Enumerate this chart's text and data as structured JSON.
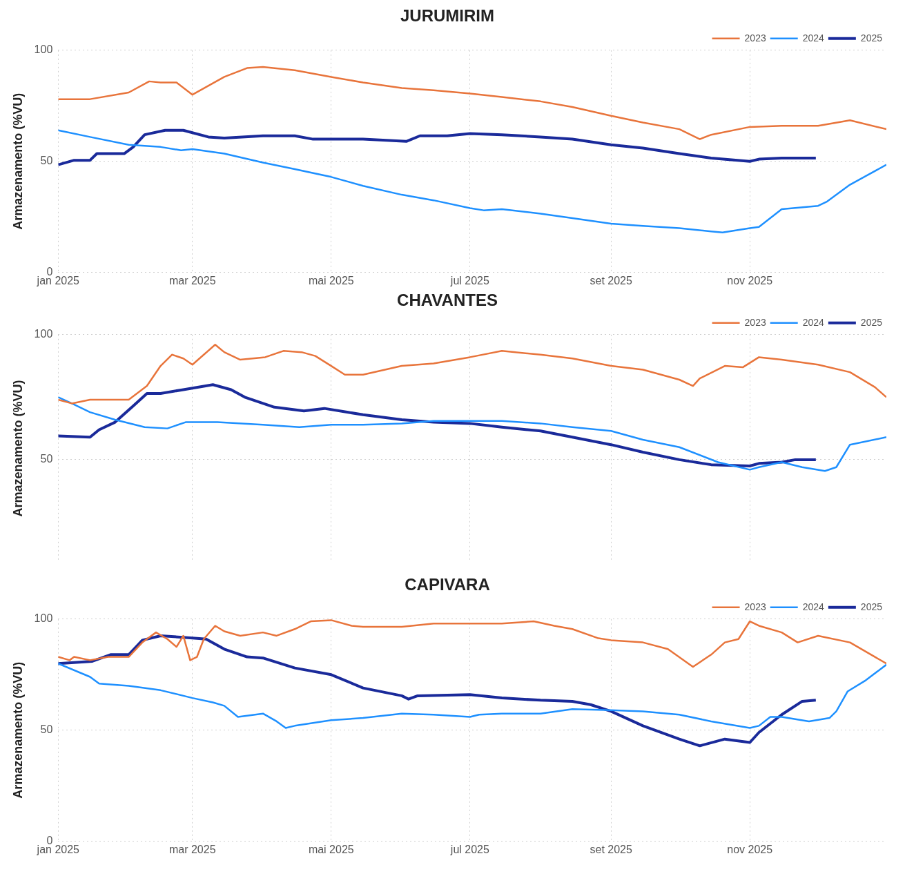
{
  "chart_data": [
    {
      "type": "line",
      "title": "JURUMIRIM",
      "ylabel": "Armazenamento (%VU)",
      "xlim": [
        "2025-01-01",
        "2025-12-31"
      ],
      "ylim": [
        0,
        100
      ],
      "yticks": [
        0,
        50,
        100
      ],
      "xticks": [
        {
          "value": "2025-01-01",
          "label": "jan 2025"
        },
        {
          "value": "2025-03-01",
          "label": "mar 2025"
        },
        {
          "value": "2025-05-01",
          "label": "mai 2025"
        },
        {
          "value": "2025-07-01",
          "label": "jul 2025"
        },
        {
          "value": "2025-09-01",
          "label": "set 2025"
        },
        {
          "value": "2025-11-01",
          "label": "nov 2025"
        }
      ],
      "grid": true,
      "legend": "top right",
      "marker": "none",
      "series": [
        {
          "name": "2023",
          "color": "#e8743b",
          "x": [
            "2025-01-01",
            "2025-01-15",
            "2025-02-01",
            "2025-02-10",
            "2025-02-15",
            "2025-02-22",
            "2025-03-01",
            "2025-03-15",
            "2025-03-25",
            "2025-04-01",
            "2025-04-15",
            "2025-05-01",
            "2025-05-15",
            "2025-06-01",
            "2025-06-15",
            "2025-07-01",
            "2025-07-15",
            "2025-08-01",
            "2025-08-15",
            "2025-09-01",
            "2025-09-15",
            "2025-10-01",
            "2025-10-10",
            "2025-10-15",
            "2025-11-01",
            "2025-11-15",
            "2025-12-01",
            "2025-12-15",
            "2025-12-31"
          ],
          "values": [
            78,
            78,
            81,
            86,
            85.5,
            85.5,
            80,
            88,
            92,
            92.5,
            91,
            88,
            85.5,
            83,
            82,
            80.5,
            79,
            77,
            74.5,
            70.5,
            67.5,
            64.5,
            60,
            62,
            65.5,
            66,
            66,
            68.5,
            64.5
          ]
        },
        {
          "name": "2024",
          "color": "#1e90ff",
          "x": [
            "2025-01-01",
            "2025-01-15",
            "2025-02-01",
            "2025-02-15",
            "2025-02-24",
            "2025-03-01",
            "2025-03-15",
            "2025-04-01",
            "2025-04-15",
            "2025-05-01",
            "2025-05-15",
            "2025-06-01",
            "2025-06-15",
            "2025-07-01",
            "2025-07-07",
            "2025-07-15",
            "2025-08-01",
            "2025-08-15",
            "2025-09-01",
            "2025-09-15",
            "2025-10-01",
            "2025-10-15",
            "2025-10-20",
            "2025-11-01",
            "2025-11-05",
            "2025-11-15",
            "2025-12-01",
            "2025-12-05",
            "2025-12-15",
            "2025-12-31"
          ],
          "values": [
            64,
            61,
            57.5,
            56.5,
            55,
            55.5,
            53.5,
            49.5,
            46.5,
            43,
            39,
            35,
            32.5,
            29,
            28,
            28.5,
            26.5,
            24.5,
            22,
            21,
            20,
            18.5,
            18,
            20,
            20.5,
            28.5,
            30,
            32,
            39.5,
            48.5
          ]
        },
        {
          "name": "2025",
          "color": "#1a2a9a",
          "x": [
            "2025-01-01",
            "2025-01-08",
            "2025-01-15",
            "2025-01-18",
            "2025-01-30",
            "2025-02-03",
            "2025-02-08",
            "2025-02-17",
            "2025-02-25",
            "2025-03-08",
            "2025-03-15",
            "2025-04-01",
            "2025-04-15",
            "2025-04-23",
            "2025-05-15",
            "2025-06-03",
            "2025-06-09",
            "2025-06-21",
            "2025-07-01",
            "2025-07-15",
            "2025-08-01",
            "2025-08-15",
            "2025-09-01",
            "2025-09-15",
            "2025-10-01",
            "2025-10-15",
            "2025-11-01",
            "2025-11-05",
            "2025-11-15",
            "2025-11-30"
          ],
          "values": [
            48.5,
            50.5,
            50.5,
            53.5,
            53.5,
            56.5,
            62,
            64,
            64,
            61,
            60.5,
            61.5,
            61.5,
            60,
            60,
            59,
            61.5,
            61.5,
            62.5,
            62,
            61,
            60,
            57.5,
            56,
            53.5,
            51.5,
            50,
            51,
            51.5,
            51.5
          ]
        }
      ]
    },
    {
      "type": "line",
      "title": "CHAVANTES",
      "ylabel": "Armazenamento (%VU)",
      "xlim": [
        "2025-01-01",
        "2025-12-31"
      ],
      "ylim": [
        9,
        100
      ],
      "yticks": [
        50,
        100
      ],
      "xticks": [
        {
          "value": "2025-01-01",
          "label": null
        },
        {
          "value": "2025-03-01",
          "label": null
        },
        {
          "value": "2025-05-01",
          "label": null
        },
        {
          "value": "2025-07-01",
          "label": null
        },
        {
          "value": "2025-09-01",
          "label": null
        },
        {
          "value": "2025-11-01",
          "label": null
        }
      ],
      "tick_labels": "y",
      "grid": true,
      "legend": "top right",
      "marker": "none",
      "series": [
        {
          "name": "2023",
          "color": "#e8743b",
          "x": [
            "2025-01-01",
            "2025-01-07",
            "2025-01-15",
            "2025-02-01",
            "2025-02-09",
            "2025-02-15",
            "2025-02-20",
            "2025-02-25",
            "2025-03-01",
            "2025-03-06",
            "2025-03-11",
            "2025-03-15",
            "2025-03-22",
            "2025-04-02",
            "2025-04-10",
            "2025-04-18",
            "2025-04-24",
            "2025-05-01",
            "2025-05-07",
            "2025-05-15",
            "2025-06-01",
            "2025-06-15",
            "2025-07-01",
            "2025-07-15",
            "2025-08-01",
            "2025-08-15",
            "2025-09-01",
            "2025-09-15",
            "2025-10-01",
            "2025-10-07",
            "2025-10-10",
            "2025-10-21",
            "2025-10-29",
            "2025-11-05",
            "2025-11-15",
            "2025-12-01",
            "2025-12-15",
            "2025-12-26",
            "2025-12-31"
          ],
          "values": [
            74,
            72.5,
            74,
            74,
            79.5,
            87.5,
            92,
            90.5,
            88,
            92,
            96,
            93,
            90,
            91,
            93.5,
            93,
            91.5,
            87.5,
            84,
            84,
            87.5,
            88.5,
            91,
            93.5,
            92,
            90.5,
            87.5,
            86,
            82,
            79.5,
            82.5,
            87.5,
            87,
            91,
            90,
            88,
            85,
            79,
            75
          ]
        },
        {
          "name": "2024",
          "color": "#1e90ff",
          "x": [
            "2025-01-01",
            "2025-01-07",
            "2025-01-15",
            "2025-01-26",
            "2025-02-08",
            "2025-02-18",
            "2025-02-26",
            "2025-03-12",
            "2025-04-01",
            "2025-04-17",
            "2025-05-01",
            "2025-05-15",
            "2025-06-01",
            "2025-06-15",
            "2025-07-01",
            "2025-07-15",
            "2025-08-01",
            "2025-08-15",
            "2025-09-01",
            "2025-09-15",
            "2025-10-01",
            "2025-10-18",
            "2025-11-01",
            "2025-11-05",
            "2025-11-15",
            "2025-11-24",
            "2025-12-04",
            "2025-12-09",
            "2025-12-15",
            "2025-12-31"
          ],
          "values": [
            75,
            72.5,
            69,
            66,
            63,
            62.5,
            65,
            65,
            64,
            63,
            64,
            64,
            64.5,
            65.5,
            65.5,
            65.5,
            64.5,
            63,
            61.5,
            58,
            55,
            49,
            46,
            47,
            49,
            47,
            45.5,
            47,
            56,
            59
          ]
        },
        {
          "name": "2025",
          "color": "#1a2a9a",
          "x": [
            "2025-01-01",
            "2025-01-15",
            "2025-01-19",
            "2025-01-26",
            "2025-02-03",
            "2025-02-09",
            "2025-02-15",
            "2025-02-25",
            "2025-03-10",
            "2025-03-18",
            "2025-03-24",
            "2025-04-06",
            "2025-04-19",
            "2025-04-28",
            "2025-05-08",
            "2025-05-15",
            "2025-06-01",
            "2025-06-15",
            "2025-07-01",
            "2025-07-15",
            "2025-08-01",
            "2025-08-15",
            "2025-09-01",
            "2025-09-15",
            "2025-10-01",
            "2025-10-15",
            "2025-11-01",
            "2025-11-05",
            "2025-11-15",
            "2025-11-21",
            "2025-11-30"
          ],
          "values": [
            59.5,
            59,
            62,
            65,
            71.5,
            76.5,
            76.5,
            78,
            80,
            78,
            75,
            71,
            69.5,
            70.5,
            69,
            68,
            66,
            65,
            64.5,
            63,
            61.5,
            59,
            56,
            53,
            50,
            48,
            47.5,
            48.5,
            49,
            50,
            50
          ]
        }
      ]
    },
    {
      "type": "line",
      "title": "CAPIVARA",
      "ylabel": "Armazenamento (%VU)",
      "xlim": [
        "2025-01-01",
        "2025-12-31"
      ],
      "ylim": [
        0,
        100
      ],
      "yticks": [
        0,
        50,
        100
      ],
      "xticks": [
        {
          "value": "2025-01-01",
          "label": "jan 2025"
        },
        {
          "value": "2025-03-01",
          "label": "mar 2025"
        },
        {
          "value": "2025-05-01",
          "label": "mai 2025"
        },
        {
          "value": "2025-07-01",
          "label": "jul 2025"
        },
        {
          "value": "2025-09-01",
          "label": "set 2025"
        },
        {
          "value": "2025-11-01",
          "label": "nov 2025"
        }
      ],
      "grid": true,
      "legend": "top right",
      "marker": "none",
      "series": [
        {
          "name": "2023",
          "color": "#e8743b",
          "x": [
            "2025-01-01",
            "2025-01-06",
            "2025-01-08",
            "2025-01-15",
            "2025-01-23",
            "2025-02-01",
            "2025-02-07",
            "2025-02-13",
            "2025-02-18",
            "2025-02-22",
            "2025-02-25",
            "2025-02-28",
            "2025-03-03",
            "2025-03-06",
            "2025-03-11",
            "2025-03-15",
            "2025-03-22",
            "2025-04-01",
            "2025-04-07",
            "2025-04-15",
            "2025-04-22",
            "2025-05-01",
            "2025-05-10",
            "2025-05-15",
            "2025-06-01",
            "2025-06-15",
            "2025-07-01",
            "2025-07-15",
            "2025-07-29",
            "2025-08-07",
            "2025-08-15",
            "2025-08-26",
            "2025-09-01",
            "2025-09-15",
            "2025-09-26",
            "2025-10-07",
            "2025-10-15",
            "2025-10-21",
            "2025-10-27",
            "2025-11-01",
            "2025-11-05",
            "2025-11-15",
            "2025-11-22",
            "2025-12-01",
            "2025-12-15",
            "2025-12-31"
          ],
          "values": [
            83,
            81.5,
            83,
            81.5,
            83,
            83,
            89.5,
            94,
            91,
            87.5,
            92.5,
            81.5,
            83,
            91,
            97,
            94.5,
            92.5,
            94,
            92.5,
            95.5,
            99,
            99.5,
            97,
            96.5,
            96.5,
            98,
            98,
            98,
            99,
            97,
            95.5,
            91.5,
            90.5,
            89.5,
            86.5,
            78.5,
            84,
            89.5,
            91,
            99,
            97,
            94,
            89.5,
            92.5,
            89.5,
            80
          ]
        },
        {
          "name": "2024",
          "color": "#1e90ff",
          "x": [
            "2025-01-01",
            "2025-01-15",
            "2025-01-19",
            "2025-02-01",
            "2025-02-15",
            "2025-03-01",
            "2025-03-10",
            "2025-03-15",
            "2025-03-21",
            "2025-04-01",
            "2025-04-07",
            "2025-04-11",
            "2025-04-15",
            "2025-05-01",
            "2025-05-15",
            "2025-06-01",
            "2025-06-15",
            "2025-07-01",
            "2025-07-05",
            "2025-07-15",
            "2025-08-01",
            "2025-08-15",
            "2025-09-01",
            "2025-09-15",
            "2025-10-01",
            "2025-10-15",
            "2025-11-01",
            "2025-11-05",
            "2025-11-10",
            "2025-11-15",
            "2025-11-27",
            "2025-12-06",
            "2025-12-09",
            "2025-12-14",
            "2025-12-22",
            "2025-12-31"
          ],
          "values": [
            80,
            74,
            71,
            70,
            68,
            64.5,
            62.5,
            61,
            56,
            57.5,
            54,
            51,
            52,
            54.5,
            55.5,
            57.5,
            57,
            56,
            57,
            57.5,
            57.5,
            59.5,
            59,
            58.5,
            57,
            54,
            51,
            52,
            56,
            56,
            54,
            55.5,
            58.5,
            67.5,
            72.5,
            79.5
          ]
        },
        {
          "name": "2025",
          "color": "#1a2a9a",
          "x": [
            "2025-01-01",
            "2025-01-16",
            "2025-01-24",
            "2025-02-01",
            "2025-02-07",
            "2025-02-15",
            "2025-03-01",
            "2025-03-07",
            "2025-03-15",
            "2025-03-25",
            "2025-04-01",
            "2025-04-15",
            "2025-05-01",
            "2025-05-15",
            "2025-06-01",
            "2025-06-04",
            "2025-06-08",
            "2025-07-01",
            "2025-07-15",
            "2025-08-01",
            "2025-08-15",
            "2025-08-23",
            "2025-09-01",
            "2025-09-15",
            "2025-10-01",
            "2025-10-10",
            "2025-10-21",
            "2025-11-01",
            "2025-11-05",
            "2025-11-15",
            "2025-11-24",
            "2025-11-30"
          ],
          "values": [
            80,
            81,
            84,
            84,
            90.5,
            92.5,
            91.5,
            91,
            86.5,
            83,
            82.5,
            78,
            75,
            69,
            65.5,
            64,
            65.5,
            66,
            64.5,
            63.5,
            63,
            61.5,
            58.5,
            52,
            46,
            43,
            46,
            44.5,
            49,
            57,
            63,
            63.5
          ]
        }
      ]
    }
  ]
}
